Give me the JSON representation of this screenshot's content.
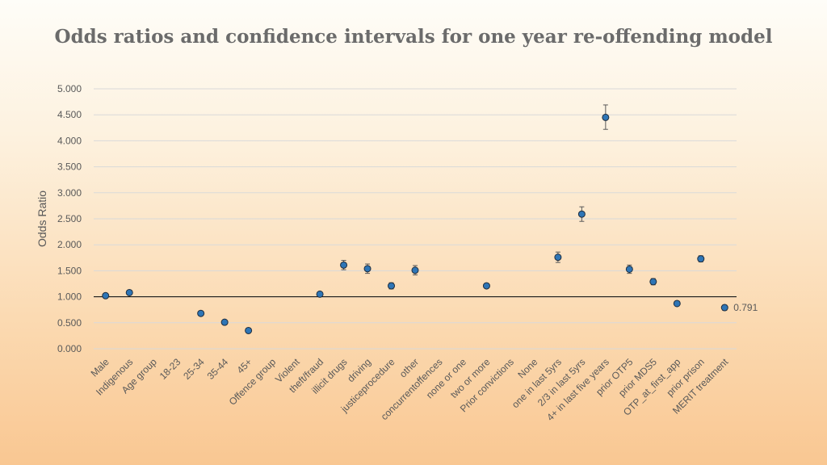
{
  "chart_data": {
    "type": "scatter",
    "title": "Odds ratios and confidence intervals for one year re-offending model",
    "xlabel": "",
    "ylabel": "Odds Ratio",
    "ylim": [
      0,
      5
    ],
    "yticks": [
      "0.000",
      "0.500",
      "1.000",
      "1.500",
      "2.000",
      "2.500",
      "3.000",
      "3.500",
      "4.000",
      "4.500",
      "5.000"
    ],
    "reference_line": 1.0,
    "categories": [
      "Male",
      "Indigenous",
      "Age group",
      "18-23",
      "25-34",
      "35-44",
      "45+",
      "Offence group",
      "Violent",
      "theft/fraud",
      "illicit drugs",
      "driving",
      "justiceprocedure",
      "other",
      "concurrentoffences",
      "none or one",
      "two or more",
      "Prior convictions",
      "None",
      "one in last 5yrs",
      "2/3 in last 5yrs",
      "4+ in last five years",
      "prior OTP5",
      "prior MDS5",
      "OTP_at_first_app",
      "prior prison",
      "MERIT treatment"
    ],
    "values": [
      1.02,
      1.08,
      null,
      null,
      0.68,
      0.51,
      0.35,
      null,
      null,
      1.05,
      1.61,
      1.54,
      1.21,
      1.51,
      null,
      null,
      1.21,
      null,
      null,
      1.76,
      2.59,
      4.45,
      1.53,
      1.29,
      0.87,
      1.73,
      0.791
    ],
    "ci_lower": [
      1.0,
      1.05,
      null,
      null,
      0.66,
      0.49,
      0.33,
      null,
      null,
      1.02,
      1.52,
      1.45,
      1.15,
      1.42,
      null,
      null,
      1.18,
      null,
      null,
      1.66,
      2.45,
      4.22,
      1.45,
      1.23,
      0.84,
      1.67,
      0.74
    ],
    "ci_upper": [
      1.04,
      1.11,
      null,
      null,
      0.7,
      0.53,
      0.37,
      null,
      null,
      1.08,
      1.7,
      1.63,
      1.27,
      1.6,
      null,
      null,
      1.24,
      null,
      null,
      1.86,
      2.73,
      4.69,
      1.61,
      1.35,
      0.9,
      1.79,
      0.84
    ],
    "data_labels": [
      {
        "index": 26,
        "text": "0.791"
      }
    ],
    "grid": true,
    "legend": "none",
    "colors": {
      "marker": "#2e75b6",
      "marker_edge": "#1f2d3d",
      "grid": "#d9d9d9",
      "reference": "#000000",
      "errorbar": "#595959"
    }
  }
}
